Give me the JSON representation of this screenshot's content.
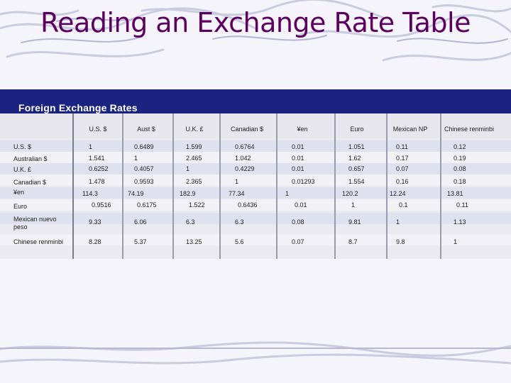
{
  "title": "Reading an Exchange Rate Table",
  "table": {
    "caption": "Foreign Exchange Rates",
    "columns": [
      "U.S. $",
      "Aust $",
      "U.K. £",
      "Canadian $",
      "¥en",
      "Euro",
      "Mexican NP",
      "Chinese renminbi"
    ],
    "rows": [
      {
        "label": "U.S. $",
        "values": [
          "1",
          "0.6489",
          "1.599",
          "0.6764",
          "0.01",
          "1.051",
          "0.11",
          "0.12"
        ]
      },
      {
        "label": "Australian $",
        "values": [
          "1.541",
          "1",
          "2.465",
          "1.042",
          "0.01",
          "1.62",
          "0.17",
          "0.19"
        ]
      },
      {
        "label": "U.K. £",
        "values": [
          "0.6252",
          "0.4057",
          "1",
          "0.4229",
          "0.01",
          "0.657",
          "0.07",
          "0.08"
        ]
      },
      {
        "label": "Canadian $",
        "values": [
          "1.478",
          "0.9593",
          "2.365",
          "1",
          "0.01293",
          "1.554",
          "0.16",
          "0.18"
        ]
      },
      {
        "label": "¥en",
        "values": [
          "114.3",
          "74.19",
          "182.9",
          "77.34",
          "1",
          "120.2",
          "12.24",
          "13.81"
        ]
      },
      {
        "label": "Euro",
        "values": [
          "0.9516",
          "0.6175",
          "1.522",
          "0.6436",
          "0.01",
          "1",
          "0.1",
          "0.11"
        ]
      },
      {
        "label": "Mexican nuevo peso",
        "values": [
          "9.33",
          "6.06",
          "6.3",
          "6.3",
          "0.08",
          "9.81",
          "1",
          "1.13"
        ]
      },
      {
        "label": "Chinese renminbi",
        "values": [
          "8.28",
          "5.37",
          "13.25",
          "5.6",
          "0.07",
          "8.7",
          "9.8",
          "1"
        ]
      }
    ]
  },
  "colors": {
    "title": "#5c0060",
    "banner": "#1a2380",
    "background": "#f4f4fa"
  }
}
